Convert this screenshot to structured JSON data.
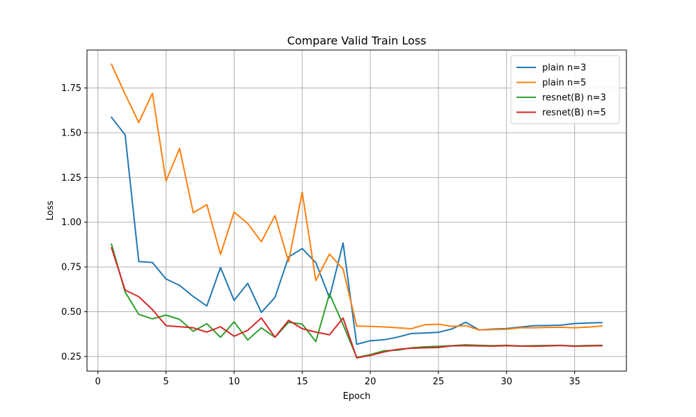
{
  "chart_data": {
    "type": "line",
    "title": "Compare Valid Train Loss",
    "xlabel": "Epoch",
    "ylabel": "Loss",
    "xlim": [
      -0.8,
      38.8
    ],
    "ylim": [
      0.168,
      1.962
    ],
    "xticks": [
      0,
      5,
      10,
      15,
      20,
      25,
      30,
      35
    ],
    "yticks": [
      0.25,
      0.5,
      0.75,
      1.0,
      1.25,
      1.5,
      1.75
    ],
    "ytick_labels": [
      "0.25",
      "0.50",
      "0.75",
      "1.00",
      "1.25",
      "1.50",
      "1.75"
    ],
    "grid": true,
    "legend_position": "upper right",
    "x": [
      1,
      2,
      3,
      4,
      5,
      6,
      7,
      8,
      9,
      10,
      11,
      12,
      13,
      14,
      15,
      16,
      17,
      18,
      19,
      20,
      21,
      22,
      23,
      24,
      25,
      26,
      27,
      28,
      29,
      30,
      31,
      32,
      33,
      34,
      35,
      36,
      37
    ],
    "series": [
      {
        "name": "plain n=3",
        "color": "#1f77b4",
        "values": [
          1.586,
          1.488,
          0.78,
          0.775,
          0.683,
          0.647,
          0.585,
          0.532,
          0.747,
          0.563,
          0.659,
          0.496,
          0.58,
          0.806,
          0.853,
          0.774,
          0.578,
          0.884,
          0.318,
          0.338,
          0.343,
          0.358,
          0.378,
          0.381,
          0.385,
          0.404,
          0.441,
          0.398,
          0.403,
          0.406,
          0.414,
          0.422,
          0.423,
          0.425,
          0.434,
          0.437,
          0.439
        ]
      },
      {
        "name": "plain n=5",
        "color": "#ff7f0e",
        "values": [
          1.882,
          1.715,
          1.557,
          1.72,
          1.231,
          1.412,
          1.053,
          1.098,
          0.82,
          1.056,
          0.993,
          0.891,
          1.037,
          0.78,
          1.168,
          0.674,
          0.822,
          0.738,
          0.42,
          0.418,
          0.415,
          0.41,
          0.405,
          0.427,
          0.43,
          0.418,
          0.422,
          0.398,
          0.4,
          0.402,
          0.41,
          0.41,
          0.412,
          0.413,
          0.41,
          0.414,
          0.42
        ]
      },
      {
        "name": "resnet(B) n=3",
        "color": "#2ca02c",
        "values": [
          0.877,
          0.61,
          0.485,
          0.46,
          0.481,
          0.457,
          0.391,
          0.433,
          0.357,
          0.444,
          0.342,
          0.41,
          0.357,
          0.441,
          0.431,
          0.333,
          0.6,
          0.428,
          0.245,
          0.26,
          0.282,
          0.285,
          0.298,
          0.304,
          0.307,
          0.31,
          0.315,
          0.312,
          0.31,
          0.312,
          0.309,
          0.31,
          0.311,
          0.312,
          0.309,
          0.311,
          0.312
        ]
      },
      {
        "name": "resnet(B) n=5",
        "color": "#d62728",
        "values": [
          0.857,
          0.621,
          0.584,
          0.512,
          0.422,
          0.416,
          0.41,
          0.386,
          0.416,
          0.363,
          0.396,
          0.465,
          0.358,
          0.452,
          0.405,
          0.386,
          0.371,
          0.465,
          0.242,
          0.256,
          0.275,
          0.29,
          0.296,
          0.298,
          0.3,
          0.309,
          0.31,
          0.309,
          0.308,
          0.31,
          0.308,
          0.307,
          0.309,
          0.311,
          0.307,
          0.309,
          0.31
        ]
      }
    ]
  }
}
